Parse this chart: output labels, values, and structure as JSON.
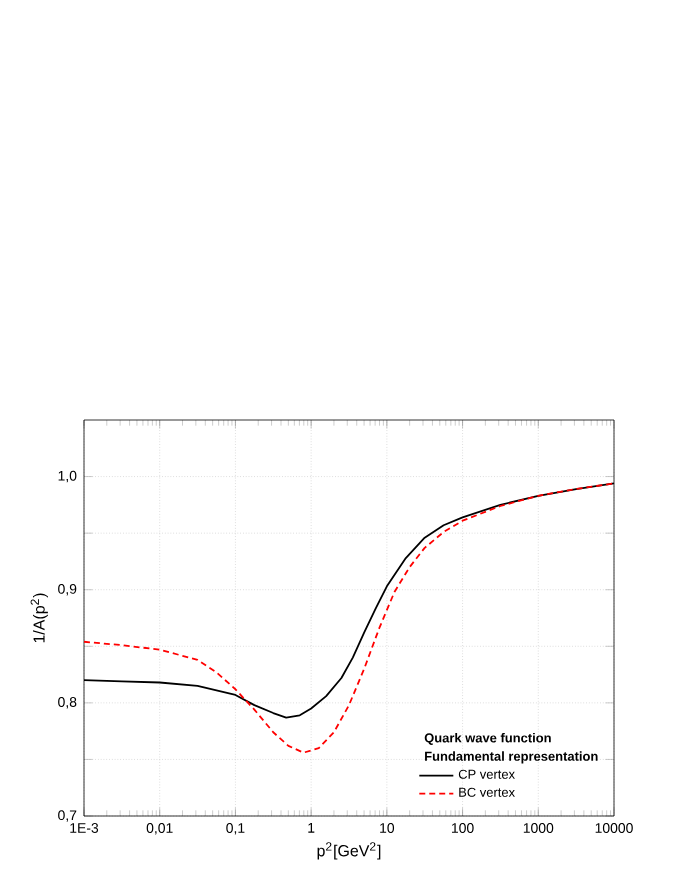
{
  "chart_data": {
    "type": "line",
    "xlabel": "p$^{2}$[GeV$^{2}$]",
    "ylabel": "1/A(p$^{2}$)",
    "log": "x",
    "grid": true,
    "legend": "bottom right",
    "legend_title": "Quark wave function",
    "annotations": [
      "Fundamental representation"
    ],
    "xlim": [
      0.001,
      10000
    ],
    "ylim": [
      0.7,
      1.05
    ],
    "xticks": [
      {
        "value": 0.001,
        "label": "1E-3"
      },
      {
        "value": 0.01,
        "label": "0,01"
      },
      {
        "value": 0.1,
        "label": "0,1"
      },
      1,
      10,
      100,
      1000,
      10000
    ],
    "yticks": [
      {
        "value": 0.7,
        "label": "0,7"
      },
      {
        "value": 0.75,
        "label": null
      },
      {
        "value": 0.8,
        "label": "0,8"
      },
      {
        "value": 0.85,
        "label": null
      },
      {
        "value": 0.9,
        "label": "0,9"
      },
      {
        "value": 0.95,
        "label": null
      },
      {
        "value": 1.0,
        "label": "1,0"
      }
    ],
    "series": [
      {
        "name": "CP vertex",
        "color": "#000000",
        "line_style": "solid",
        "x": [
          0.001,
          0.00316,
          0.01,
          0.0316,
          0.1,
          0.178,
          0.316,
          0.468,
          0.708,
          1,
          1.58,
          2.51,
          3.55,
          5.01,
          7.08,
          10,
          17.8,
          31.6,
          56.2,
          100,
          316,
          1000,
          3162,
          10000
        ],
        "values": [
          0.82,
          0.819,
          0.818,
          0.815,
          0.807,
          0.798,
          0.791,
          0.787,
          0.789,
          0.795,
          0.806,
          0.822,
          0.84,
          0.862,
          0.883,
          0.903,
          0.928,
          0.946,
          0.957,
          0.964,
          0.975,
          0.983,
          0.989,
          0.994
        ]
      },
      {
        "name": "BC vertex",
        "color": "#ff0000",
        "line_style": "dashed",
        "x": [
          0.001,
          0.00316,
          0.01,
          0.0316,
          0.0562,
          0.1,
          0.178,
          0.316,
          0.501,
          0.794,
          1.26,
          2,
          3.16,
          5.01,
          7.94,
          12.6,
          20,
          31.6,
          56.2,
          100,
          316,
          1000,
          3162,
          10000
        ],
        "values": [
          0.854,
          0.851,
          0.847,
          0.838,
          0.827,
          0.812,
          0.794,
          0.774,
          0.762,
          0.756,
          0.76,
          0.774,
          0.798,
          0.83,
          0.866,
          0.898,
          0.92,
          0.937,
          0.951,
          0.961,
          0.974,
          0.983,
          0.989,
          0.994
        ]
      }
    ]
  }
}
